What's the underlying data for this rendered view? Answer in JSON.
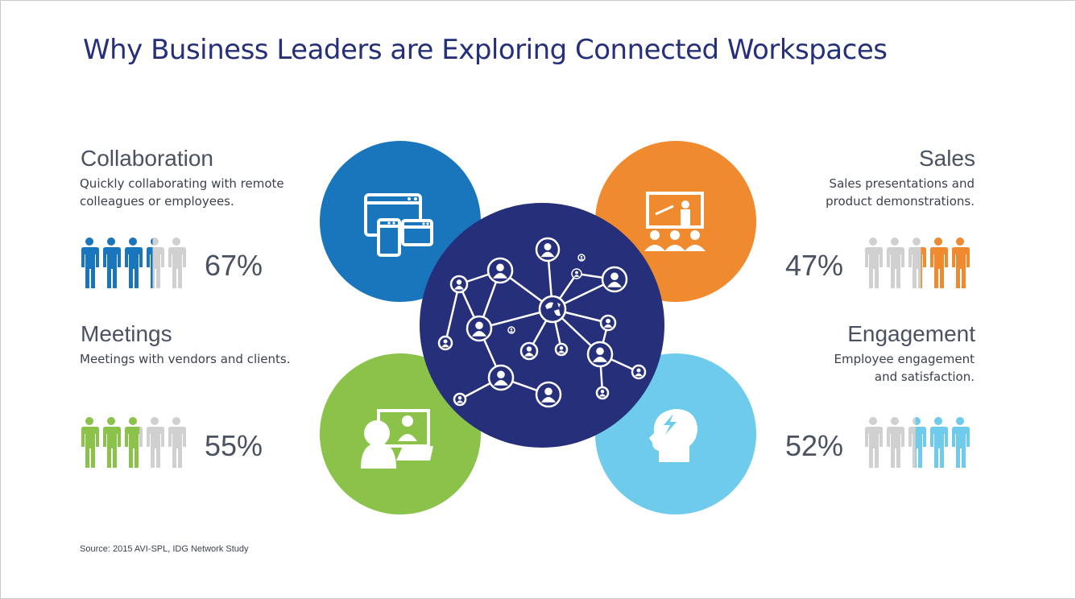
{
  "title": "Why Business Leaders are Exploring Connected Workspaces",
  "source": "Source: 2015 AVI-SPL, IDG Network Study",
  "colors": {
    "title": "#262f7a",
    "collaboration": "#1a76bc",
    "sales": "#ef8a2e",
    "meetings": "#8bc34a",
    "engagement": "#6fcbec",
    "center": "#262f7a",
    "people_inactive": "#d0d0d0"
  },
  "categories": {
    "collaboration": {
      "title": "Collaboration",
      "description": "Quickly collaborating with remote colleagues or employees.",
      "percent_label": "67%",
      "value": 67,
      "icon": "browser-windows-icon"
    },
    "sales": {
      "title": "Sales",
      "description": "Sales presentations and product demonstrations.",
      "percent_label": "47%",
      "value": 47,
      "icon": "presentation-audience-icon"
    },
    "meetings": {
      "title": "Meetings",
      "description": "Meetings with vendors and clients.",
      "percent_label": "55%",
      "value": 55,
      "icon": "video-conference-icon"
    },
    "engagement": {
      "title": "Engagement",
      "description": "Employee engagement and satisfaction.",
      "percent_label": "52%",
      "value": 52,
      "icon": "head-spark-icon"
    }
  },
  "center_icon": "people-network-icon"
}
